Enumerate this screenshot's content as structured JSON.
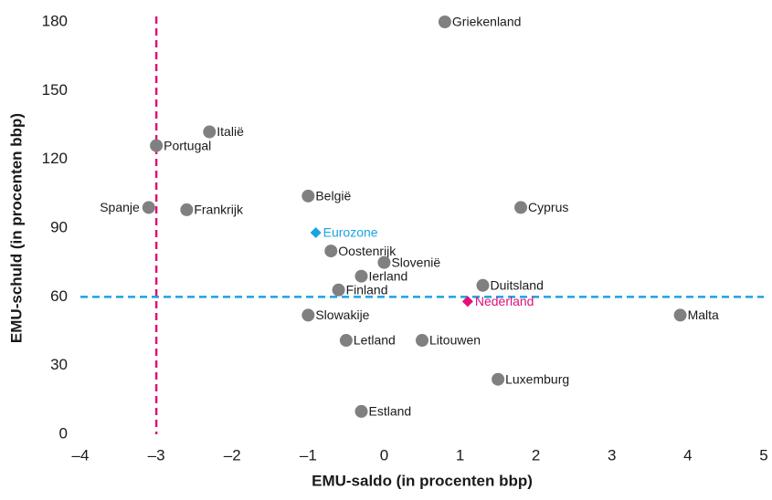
{
  "chart_data": {
    "type": "scatter",
    "xlabel": "EMU-saldo (in procenten bbp)",
    "ylabel": "EMU-schuld (in procenten bbp)",
    "xlim": [
      -4,
      5
    ],
    "ylim": [
      0,
      180
    ],
    "xticks": [
      {
        "value": -4,
        "label": "–4"
      },
      {
        "value": -3,
        "label": "–3"
      },
      {
        "value": -2,
        "label": "–2"
      },
      {
        "value": -1,
        "label": "–1"
      },
      0,
      1,
      2,
      3,
      4,
      5
    ],
    "yticks": [
      0,
      30,
      60,
      90,
      120,
      150,
      180
    ],
    "point_color": "#808080",
    "vline": {
      "x": -3,
      "color": "#e0107a"
    },
    "hline": {
      "y": 60,
      "color": "#1ba3e0"
    },
    "points": [
      {
        "label": "Griekenland",
        "x": 0.8,
        "y": 180
      },
      {
        "label": "Italië",
        "x": -2.3,
        "y": 132
      },
      {
        "label": "Portugal",
        "x": -3.0,
        "y": 126
      },
      {
        "label": "Spanje",
        "x": -3.1,
        "y": 99,
        "label_position": "left"
      },
      {
        "label": "Frankrijk",
        "x": -2.6,
        "y": 98
      },
      {
        "label": "België",
        "x": -1.0,
        "y": 104
      },
      {
        "label": "Cyprus",
        "x": 1.8,
        "y": 99
      },
      {
        "label": "Eurozone",
        "x": -0.9,
        "y": 88,
        "color": "#1ba3e0",
        "marker": "diamond"
      },
      {
        "label": "Oostenrijk",
        "x": -0.7,
        "y": 80
      },
      {
        "label": "Slovenië",
        "x": 0.0,
        "y": 75
      },
      {
        "label": "Ierland",
        "x": -0.3,
        "y": 69
      },
      {
        "label": "Duitsland",
        "x": 1.3,
        "y": 65
      },
      {
        "label": "Finland",
        "x": -0.6,
        "y": 63
      },
      {
        "label": "Nederland",
        "x": 1.1,
        "y": 58,
        "color": "#e0107a",
        "marker": "diamond"
      },
      {
        "label": "Slowakije",
        "x": -1.0,
        "y": 52
      },
      {
        "label": "Malta",
        "x": 3.9,
        "y": 52
      },
      {
        "label": "Letland",
        "x": -0.5,
        "y": 41
      },
      {
        "label": "Litouwen",
        "x": 0.5,
        "y": 41
      },
      {
        "label": "Luxemburg",
        "x": 1.5,
        "y": 24
      },
      {
        "label": "Estland",
        "x": -0.3,
        "y": 10
      }
    ]
  }
}
